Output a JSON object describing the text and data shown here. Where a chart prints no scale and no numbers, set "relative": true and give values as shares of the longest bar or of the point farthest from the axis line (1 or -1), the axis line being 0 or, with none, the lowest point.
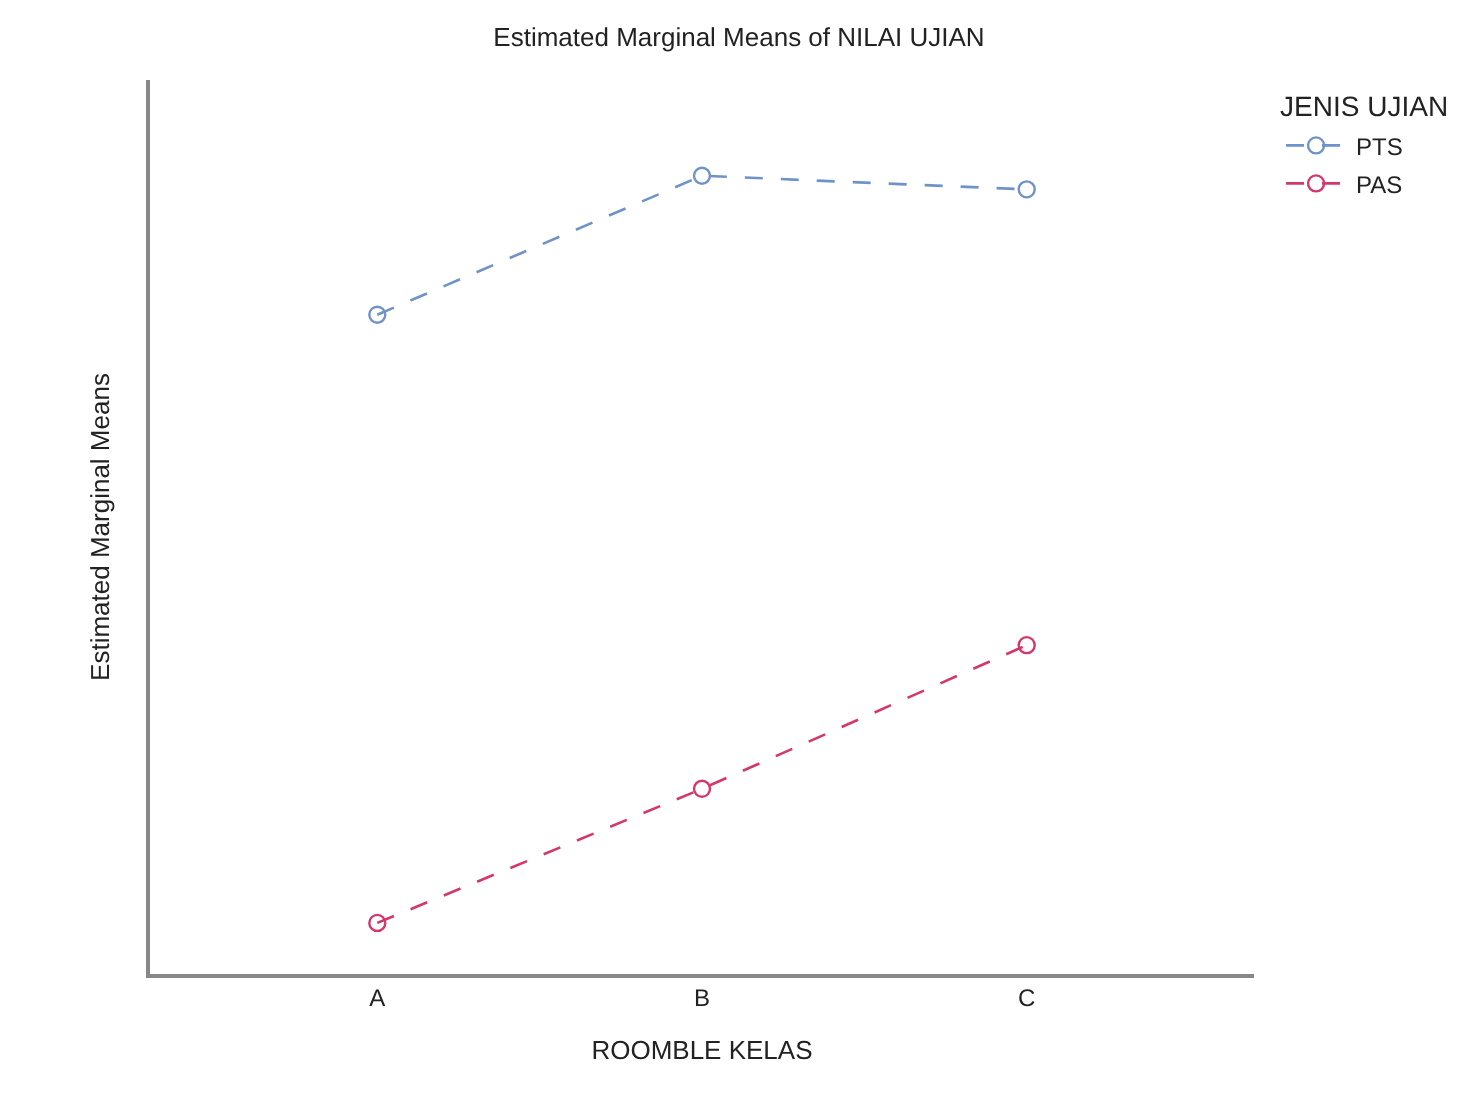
{
  "chart_data": {
    "type": "line",
    "title": "Estimated Marginal Means of NILAI UJIAN",
    "xlabel": "ROOMBLE KELAS",
    "ylabel": "Estimated Marginal Means",
    "legend_title": "JENIS UJIAN",
    "categories": [
      "A",
      "B",
      "C"
    ],
    "relative": true,
    "legend": "top right",
    "marker": "circle",
    "line_style": "dashed",
    "series": [
      {
        "name": "PTS",
        "color": "#6f93c9",
        "values": [
          0.826,
          1.0,
          0.983
        ]
      },
      {
        "name": "PAS",
        "color": "#d4386a",
        "values": [
          0.064,
          0.232,
          0.412
        ]
      }
    ]
  }
}
